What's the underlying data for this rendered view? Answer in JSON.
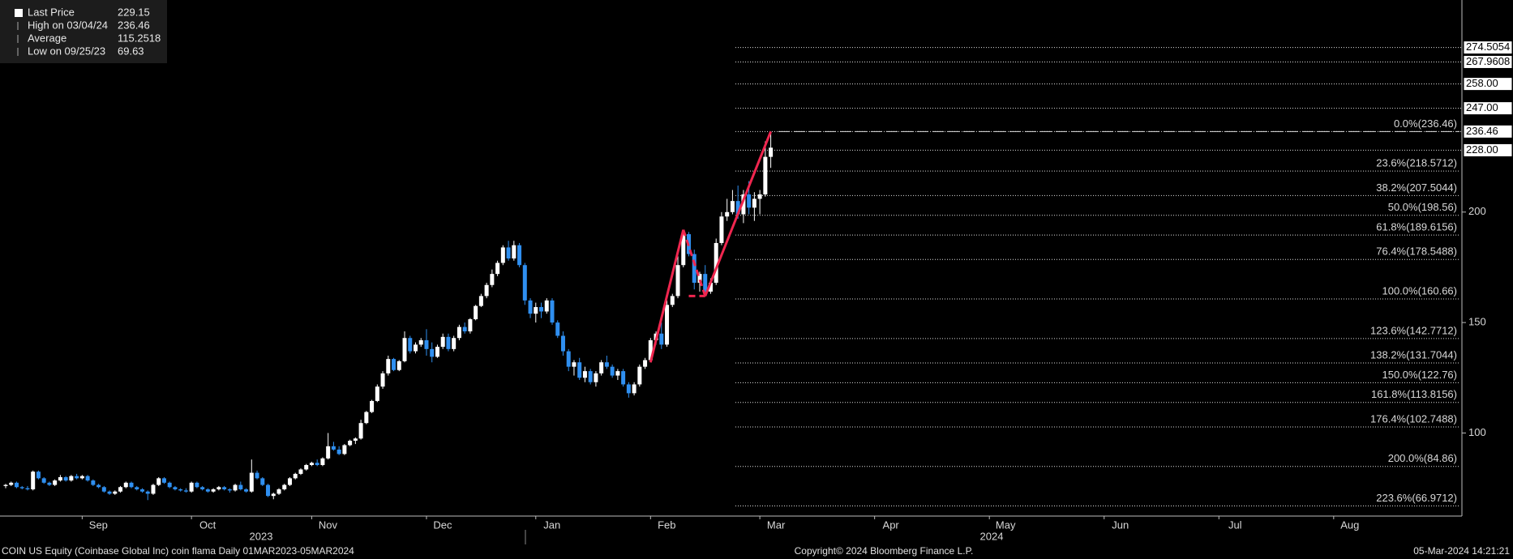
{
  "chart_data": {
    "type": "candlestick",
    "up_color": "#ffffff",
    "down_color": "#2f8ff0",
    "ylim": [
      62.4,
      296
    ],
    "yticks": [
      100,
      150,
      200
    ],
    "legend": [
      {
        "name": "Last Price",
        "value": 229.15
      },
      {
        "name": "High on 03/04/24",
        "value": 236.46
      },
      {
        "name": "Average",
        "value": 115.2518
      },
      {
        "name": "Low on 09/25/23",
        "value": 69.63
      }
    ],
    "months": [
      "Sep",
      "Oct",
      "Nov",
      "Dec",
      "Jan",
      "Feb",
      "Mar",
      "Apr",
      "May",
      "Jun",
      "Jul",
      "Aug"
    ],
    "years": [
      "2023",
      "2024"
    ],
    "price_tags": [
      274.5054,
      267.9608,
      {
        "value": 258.0,
        "label": "258.00"
      },
      {
        "value": 247.0,
        "label": "247.00"
      },
      236.46,
      {
        "value": 228.0,
        "label": "228.00"
      }
    ],
    "fib_levels": [
      {
        "value": 236.46,
        "label": "0.0%(236.46)"
      },
      {
        "value": 218.5712,
        "label": "23.6%(218.5712)"
      },
      {
        "value": 207.5044,
        "label": "38.2%(207.5044)"
      },
      {
        "value": 198.56,
        "label": "50.0%(198.56)"
      },
      {
        "value": 189.6156,
        "label": "61.8%(189.6156)"
      },
      {
        "value": 178.5488,
        "label": "76.4%(178.5488)"
      },
      {
        "value": 160.66,
        "label": "100.0%(160.66)"
      },
      {
        "value": 142.7712,
        "label": "123.6%(142.7712)"
      },
      {
        "value": 131.7044,
        "label": "138.2%(131.7044)"
      },
      {
        "value": 122.76,
        "label": "150.0%(122.76)"
      },
      {
        "value": 113.8156,
        "label": "161.8%(113.8156)"
      },
      {
        "value": 102.7488,
        "label": "176.4%(102.7488)"
      },
      {
        "value": 84.86,
        "label": "200.0%(84.86)"
      },
      {
        "value": 66.9712,
        "label": "223.6%(66.9712)"
      }
    ],
    "candles": [
      [
        76,
        77,
        75,
        76.5
      ],
      [
        76.5,
        78,
        76,
        77.5
      ],
      [
        77.5,
        78,
        75,
        75.5
      ],
      [
        75.5,
        76,
        74.5,
        75
      ],
      [
        75,
        76,
        74,
        74.5
      ],
      [
        74.5,
        83,
        74,
        82.5
      ],
      [
        82.5,
        83,
        79,
        79.5
      ],
      [
        79.5,
        80,
        77,
        77.5
      ],
      [
        77.5,
        78,
        76,
        76.5
      ],
      [
        76.5,
        79,
        76,
        78.5
      ],
      [
        78.5,
        81,
        78,
        80
      ],
      [
        80,
        80.5,
        78,
        78.5
      ],
      [
        78.5,
        81,
        78,
        80.5
      ],
      [
        80.5,
        81.5,
        79,
        79.5
      ],
      [
        79.5,
        81,
        79,
        80.5
      ],
      [
        80.5,
        81,
        78,
        78.5
      ],
      [
        78.5,
        79,
        76,
        76.5
      ],
      [
        76.5,
        77,
        75,
        75.5
      ],
      [
        75.5,
        76,
        73,
        73.5
      ],
      [
        73.5,
        74,
        72,
        72.5
      ],
      [
        72.5,
        74,
        72,
        73.5
      ],
      [
        73.5,
        76,
        73,
        75.5
      ],
      [
        75.5,
        78,
        75,
        77.5
      ],
      [
        77.5,
        78,
        75,
        75.5
      ],
      [
        75.5,
        76,
        74,
        74.5
      ],
      [
        74.5,
        75,
        73,
        73.5
      ],
      [
        73.5,
        74,
        69.63,
        72.5
      ],
      [
        72.5,
        77,
        72,
        76.5
      ],
      [
        76.5,
        80,
        76,
        79.5
      ],
      [
        79.5,
        80,
        77,
        77.5
      ],
      [
        77.5,
        78,
        75,
        75.5
      ],
      [
        75.5,
        76,
        74,
        74.5
      ],
      [
        74.5,
        75,
        73.5,
        74
      ],
      [
        74,
        75,
        73,
        73.5
      ],
      [
        73.5,
        78,
        73,
        77.5
      ],
      [
        77.5,
        78,
        75,
        75.5
      ],
      [
        75.5,
        76,
        74,
        74.5
      ],
      [
        74.5,
        75,
        73,
        73.5
      ],
      [
        73.5,
        75,
        73,
        74.5
      ],
      [
        74.5,
        76,
        74,
        75.5
      ],
      [
        75.5,
        76,
        74,
        74.5
      ],
      [
        74.5,
        75,
        73,
        74
      ],
      [
        74,
        77,
        73.5,
        76.5
      ],
      [
        76.5,
        78,
        74,
        74.5
      ],
      [
        74.5,
        75,
        73,
        73.5
      ],
      [
        73.5,
        88,
        73,
        82
      ],
      [
        82,
        83,
        79,
        79.5
      ],
      [
        79.5,
        80,
        76,
        76.5
      ],
      [
        76.5,
        77,
        71,
        71.5
      ],
      [
        71.5,
        73,
        70,
        72.5
      ],
      [
        72.5,
        75,
        72,
        74.5
      ],
      [
        74.5,
        77,
        74,
        76.5
      ],
      [
        76.5,
        80,
        76,
        79.5
      ],
      [
        79.5,
        82,
        79,
        81.5
      ],
      [
        81.5,
        84,
        81,
        83.5
      ],
      [
        83.5,
        86,
        83,
        85.5
      ],
      [
        85.5,
        87,
        85,
        86.5
      ],
      [
        86.5,
        88,
        85,
        85.5
      ],
      [
        85.5,
        89,
        85,
        88.5
      ],
      [
        88.5,
        100,
        88,
        94
      ],
      [
        94,
        96,
        92,
        92.5
      ],
      [
        92.5,
        94,
        90,
        90.5
      ],
      [
        90.5,
        95,
        90,
        94.5
      ],
      [
        94.5,
        97,
        94,
        96.5
      ],
      [
        96.5,
        98,
        95,
        97.5
      ],
      [
        97.5,
        106,
        97,
        104.5
      ],
      [
        104.5,
        110,
        104,
        109.5
      ],
      [
        109.5,
        115,
        109,
        114.5
      ],
      [
        114.5,
        122,
        114,
        121
      ],
      [
        121,
        128,
        120,
        127
      ],
      [
        127,
        135,
        126,
        133.5
      ],
      [
        133.5,
        134,
        128,
        128.5
      ],
      [
        128.5,
        133,
        128,
        132.5
      ],
      [
        132.5,
        146,
        132,
        143
      ],
      [
        143,
        144,
        136,
        137
      ],
      [
        137,
        141,
        136,
        140
      ],
      [
        140,
        143,
        139,
        142
      ],
      [
        142,
        147,
        135,
        138
      ],
      [
        138,
        141,
        132,
        134.5
      ],
      [
        134.5,
        140,
        134,
        139
      ],
      [
        139,
        145,
        138,
        143.5
      ],
      [
        143.5,
        145,
        137,
        138
      ],
      [
        138,
        144,
        137,
        143
      ],
      [
        143,
        149,
        142,
        148
      ],
      [
        148,
        150,
        145,
        146
      ],
      [
        146,
        152,
        145,
        151.5
      ],
      [
        151.5,
        158,
        151,
        157.5
      ],
      [
        157.5,
        163,
        157,
        162
      ],
      [
        162,
        168,
        161,
        167
      ],
      [
        167,
        174,
        166,
        172
      ],
      [
        172,
        178,
        171,
        177
      ],
      [
        177,
        185,
        176,
        184
      ],
      [
        184,
        187,
        178,
        179
      ],
      [
        179,
        187,
        178,
        185
      ],
      [
        185,
        186,
        175,
        176
      ],
      [
        176,
        177,
        158,
        160
      ],
      [
        160,
        161,
        152,
        154
      ],
      [
        154,
        159,
        150,
        157
      ],
      [
        157,
        159,
        152,
        155
      ],
      [
        155,
        161,
        154,
        160
      ],
      [
        160,
        161,
        149,
        150
      ],
      [
        150,
        151,
        143,
        144
      ],
      [
        144,
        146,
        135,
        137
      ],
      [
        137,
        138,
        128,
        130
      ],
      [
        130,
        133,
        126,
        132
      ],
      [
        132,
        134,
        124,
        125
      ],
      [
        125,
        130,
        123,
        128
      ],
      [
        128,
        129,
        122,
        123
      ],
      [
        123,
        128,
        121,
        127
      ],
      [
        127,
        133,
        126,
        132
      ],
      [
        132,
        135,
        129,
        130
      ],
      [
        130,
        131,
        125,
        126
      ],
      [
        126,
        129,
        124,
        128
      ],
      [
        128,
        129,
        121,
        122
      ],
      [
        122,
        123,
        116,
        118
      ],
      [
        118,
        123,
        117,
        122
      ],
      [
        122,
        131,
        121,
        130
      ],
      [
        130,
        134,
        129,
        133
      ],
      [
        133,
        143,
        132,
        142
      ],
      [
        142,
        146,
        140,
        145
      ],
      [
        145,
        150,
        138,
        140
      ],
      [
        140,
        160,
        139,
        158
      ],
      [
        158,
        163,
        157,
        162
      ],
      [
        162,
        180,
        161,
        176
      ],
      [
        176,
        192,
        175,
        190
      ],
      [
        190,
        191,
        180,
        181
      ],
      [
        181,
        183,
        165,
        168
      ],
      [
        168,
        173,
        164,
        172
      ],
      [
        172,
        176,
        162,
        164
      ],
      [
        164,
        170,
        163,
        168
      ],
      [
        168,
        188,
        167,
        186
      ],
      [
        186,
        200,
        185,
        198
      ],
      [
        198,
        206,
        196,
        200
      ],
      [
        200,
        210,
        199,
        205
      ],
      [
        205,
        212,
        197,
        199
      ],
      [
        199,
        210,
        195,
        208
      ],
      [
        208,
        214,
        199,
        202
      ],
      [
        202,
        209,
        196,
        206
      ],
      [
        206,
        210,
        199,
        208
      ],
      [
        208,
        232,
        207,
        225
      ],
      [
        225,
        236.46,
        220,
        229.15
      ]
    ],
    "footer_left": "COIN US Equity (Coinbase Global Inc) coin flama  Daily 01MAR2023-05MAR2024",
    "footer_center": "Copyright© 2024 Bloomberg Finance L.P.",
    "footer_right": "05-Mar-2024 14:21:21"
  }
}
